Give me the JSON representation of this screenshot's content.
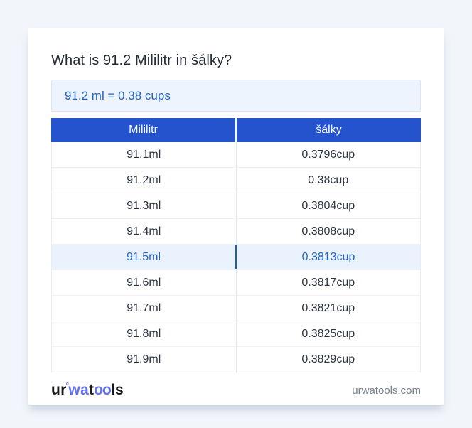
{
  "page": {
    "title": "What is 91.2 Mililitr in šálky?",
    "answer": "91.2 ml = 0.38 cups"
  },
  "table": {
    "headers": [
      "Mililitr",
      "šálky"
    ],
    "rows": [
      {
        "ml": "91.1ml",
        "cup": "0.3796cup",
        "highlight": false
      },
      {
        "ml": "91.2ml",
        "cup": "0.38cup",
        "highlight": false
      },
      {
        "ml": "91.3ml",
        "cup": "0.3804cup",
        "highlight": false
      },
      {
        "ml": "91.4ml",
        "cup": "0.3808cup",
        "highlight": false
      },
      {
        "ml": "91.5ml",
        "cup": "0.3813cup",
        "highlight": true
      },
      {
        "ml": "91.6ml",
        "cup": "0.3817cup",
        "highlight": false
      },
      {
        "ml": "91.7ml",
        "cup": "0.3821cup",
        "highlight": false
      },
      {
        "ml": "91.8ml",
        "cup": "0.3825cup",
        "highlight": false
      },
      {
        "ml": "91.9ml",
        "cup": "0.3829cup",
        "highlight": false
      }
    ]
  },
  "footer": {
    "logo": {
      "seg1": "ur",
      "degree": "°",
      "seg2": "wa",
      "seg3": "t",
      "seg4": "oo",
      "seg5": "ls"
    },
    "domain": "urwatools.com"
  },
  "colors": {
    "header_blue": "#2453cd",
    "answer_bg": "#edf4fd",
    "answer_text": "#2560c8",
    "highlight_bg": "#e9f2fd",
    "highlight_text": "#2465c8",
    "highlight_divider": "#1c5cb5",
    "page_bg": "#f2f5fa",
    "logo_blue": "#6372f0"
  }
}
